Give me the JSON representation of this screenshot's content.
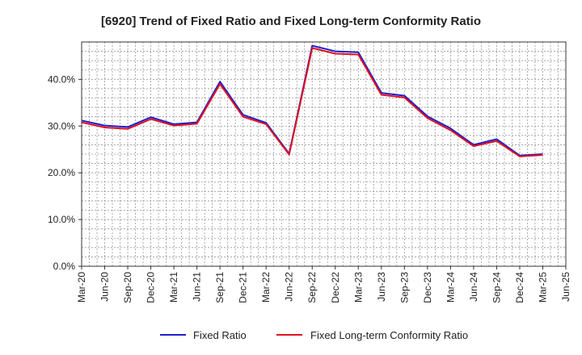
{
  "chart_data": {
    "type": "line",
    "title": "[6920]  Trend of Fixed Ratio and Fixed Long-term Conformity Ratio",
    "xlabel": "",
    "ylabel": "",
    "x": [
      "Mar-20",
      "Jun-20",
      "Sep-20",
      "Dec-20",
      "Mar-21",
      "Jun-21",
      "Sep-21",
      "Dec-21",
      "Mar-22",
      "Jun-22",
      "Sep-22",
      "Dec-22",
      "Mar-23",
      "Jun-23",
      "Sep-23",
      "Dec-23",
      "Mar-24",
      "Jun-24",
      "Sep-24",
      "Dec-24",
      "Mar-25"
    ],
    "x_ticks": [
      "Mar-20",
      "Jun-20",
      "Sep-20",
      "Dec-20",
      "Mar-21",
      "Jun-21",
      "Sep-21",
      "Dec-21",
      "Mar-22",
      "Jun-22",
      "Sep-22",
      "Dec-22",
      "Mar-23",
      "Jun-23",
      "Sep-23",
      "Dec-23",
      "Mar-24",
      "Jun-24",
      "Sep-24",
      "Dec-24",
      "Mar-25",
      "Jun-25"
    ],
    "y_ticks": [
      "0.0%",
      "10.0%",
      "20.0%",
      "30.0%",
      "40.0%"
    ],
    "ylim": [
      0,
      48
    ],
    "grid": true,
    "legend_position": "bottom",
    "series": [
      {
        "name": "Fixed Ratio",
        "color": "#1f1fcc",
        "values": [
          31.2,
          30.1,
          29.8,
          31.9,
          30.4,
          30.8,
          39.5,
          32.4,
          30.7,
          24.1,
          47.2,
          46.0,
          45.8,
          37.1,
          36.5,
          32.1,
          29.5,
          26.0,
          27.2,
          23.7,
          24.0
        ]
      },
      {
        "name": "Fixed Long-term Conformity Ratio",
        "color": "#e01020",
        "values": [
          30.8,
          29.7,
          29.4,
          31.5,
          30.1,
          30.5,
          39.0,
          32.0,
          30.4,
          23.9,
          46.7,
          45.5,
          45.3,
          36.7,
          36.1,
          31.7,
          29.1,
          25.7,
          26.8,
          23.5,
          23.8
        ]
      }
    ]
  }
}
